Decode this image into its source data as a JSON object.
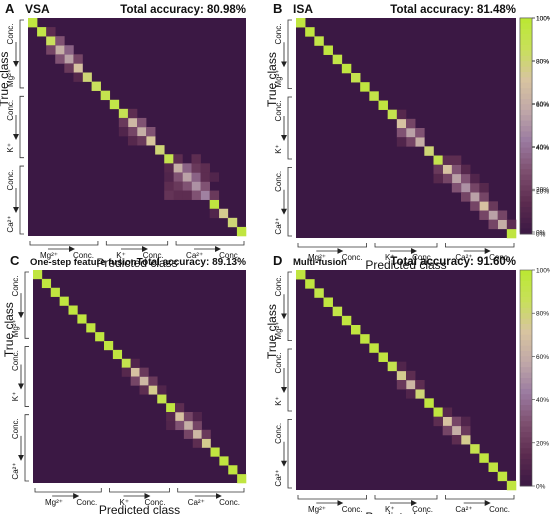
{
  "figure": {
    "colorbar_ticks": [
      "100%",
      "80%",
      "60%",
      "40%",
      "20%",
      "0%"
    ],
    "colormap": [
      "#3b1844",
      "#5b2b4f",
      "#7d4e6e",
      "#9a7aa0",
      "#c0a8a8",
      "#d8c4a0",
      "#c8e05a",
      "#bbe832"
    ]
  },
  "chart_data": [
    {
      "type": "heatmap",
      "panel_letter": "A",
      "title": "VSA",
      "accuracy_label": "Total accuracy: 80.98%",
      "total_accuracy": 80.98,
      "xlabel": "Predicted class",
      "ylabel": "True class",
      "n_classes": 24,
      "value_range": [
        0,
        100
      ],
      "diagonal_values": [
        95,
        92,
        85,
        60,
        55,
        70,
        80,
        85,
        90,
        92,
        88,
        65,
        60,
        72,
        80,
        90,
        60,
        55,
        50,
        45,
        95,
        75,
        80,
        95
      ],
      "off_diagonal": [
        {
          "row": 2,
          "col": 3,
          "value": 30
        },
        {
          "row": 3,
          "col": 2,
          "value": 25
        },
        {
          "row": 3,
          "col": 4,
          "value": 35
        },
        {
          "row": 4,
          "col": 3,
          "value": 30
        },
        {
          "row": 4,
          "col": 5,
          "value": 25
        },
        {
          "row": 5,
          "col": 4,
          "value": 20
        },
        {
          "row": 1,
          "col": 2,
          "value": 15
        },
        {
          "row": 6,
          "col": 5,
          "value": 12
        },
        {
          "row": 11,
          "col": 12,
          "value": 30
        },
        {
          "row": 12,
          "col": 11,
          "value": 25
        },
        {
          "row": 12,
          "col": 13,
          "value": 30
        },
        {
          "row": 13,
          "col": 12,
          "value": 20
        },
        {
          "row": 10,
          "col": 11,
          "value": 15
        },
        {
          "row": 11,
          "col": 10,
          "value": 20
        },
        {
          "row": 12,
          "col": 10,
          "value": 10
        },
        {
          "row": 13,
          "col": 11,
          "value": 12
        },
        {
          "row": 16,
          "col": 17,
          "value": 35
        },
        {
          "row": 17,
          "col": 16,
          "value": 30
        },
        {
          "row": 17,
          "col": 18,
          "value": 35
        },
        {
          "row": 18,
          "col": 17,
          "value": 30
        },
        {
          "row": 18,
          "col": 19,
          "value": 30
        },
        {
          "row": 19,
          "col": 18,
          "value": 30
        },
        {
          "row": 16,
          "col": 18,
          "value": 20
        },
        {
          "row": 18,
          "col": 16,
          "value": 20
        },
        {
          "row": 19,
          "col": 17,
          "value": 15
        },
        {
          "row": 17,
          "col": 19,
          "value": 15
        },
        {
          "row": 16,
          "col": 19,
          "value": 15
        },
        {
          "row": 19,
          "col": 16,
          "value": 15
        },
        {
          "row": 15,
          "col": 16,
          "value": 15
        },
        {
          "row": 16,
          "col": 15,
          "value": 12
        },
        {
          "row": 18,
          "col": 15,
          "value": 15
        },
        {
          "row": 19,
          "col": 15,
          "value": 18
        },
        {
          "row": 15,
          "col": 18,
          "value": 15
        },
        {
          "row": 17,
          "col": 15,
          "value": 10
        },
        {
          "row": 19,
          "col": 20,
          "value": 20
        },
        {
          "row": 21,
          "col": 20,
          "value": 10
        },
        {
          "row": 17,
          "col": 20,
          "value": 10
        }
      ],
      "x_group_labels": [
        {
          "ion": "Mg²⁺",
          "conc": "Conc."
        },
        {
          "ion": "K⁺",
          "conc": "Conc."
        },
        {
          "ion": "Ca²⁺",
          "conc": "Conc."
        }
      ],
      "y_group_labels": [
        {
          "ion": "Mg²⁺",
          "conc": "Conc."
        },
        {
          "ion": "K⁺",
          "conc": "Conc."
        },
        {
          "ion": "Ca²⁺",
          "conc": "Conc."
        }
      ]
    },
    {
      "type": "heatmap",
      "panel_letter": "B",
      "title": "ISA",
      "accuracy_label": "Total accuracy: 81.48%",
      "total_accuracy": 81.48,
      "xlabel": "Predicted class",
      "ylabel": "True class",
      "n_classes": 24,
      "value_range": [
        0,
        100
      ],
      "diagonal_values": [
        95,
        95,
        92,
        95,
        92,
        95,
        90,
        95,
        92,
        95,
        90,
        70,
        55,
        60,
        80,
        90,
        70,
        55,
        50,
        55,
        70,
        55,
        60,
        95
      ],
      "off_diagonal": [
        {
          "row": 11,
          "col": 12,
          "value": 25
        },
        {
          "row": 12,
          "col": 11,
          "value": 30
        },
        {
          "row": 12,
          "col": 13,
          "value": 30
        },
        {
          "row": 13,
          "col": 12,
          "value": 25
        },
        {
          "row": 10,
          "col": 11,
          "value": 12
        },
        {
          "row": 13,
          "col": 11,
          "value": 10
        },
        {
          "row": 16,
          "col": 17,
          "value": 30
        },
        {
          "row": 17,
          "col": 16,
          "value": 25
        },
        {
          "row": 17,
          "col": 18,
          "value": 30
        },
        {
          "row": 18,
          "col": 17,
          "value": 30
        },
        {
          "row": 18,
          "col": 19,
          "value": 25
        },
        {
          "row": 19,
          "col": 18,
          "value": 25
        },
        {
          "row": 15,
          "col": 16,
          "value": 15
        },
        {
          "row": 16,
          "col": 15,
          "value": 20
        },
        {
          "row": 15,
          "col": 17,
          "value": 15
        },
        {
          "row": 17,
          "col": 15,
          "value": 12
        },
        {
          "row": 19,
          "col": 20,
          "value": 25
        },
        {
          "row": 20,
          "col": 19,
          "value": 25
        },
        {
          "row": 20,
          "col": 21,
          "value": 20
        },
        {
          "row": 21,
          "col": 20,
          "value": 25
        },
        {
          "row": 21,
          "col": 22,
          "value": 25
        },
        {
          "row": 22,
          "col": 21,
          "value": 25
        },
        {
          "row": 22,
          "col": 23,
          "value": 15
        },
        {
          "row": 18,
          "col": 20,
          "value": 12
        },
        {
          "row": 16,
          "col": 18,
          "value": 12
        },
        {
          "row": 17,
          "col": 19,
          "value": 10
        }
      ],
      "x_group_labels": [
        {
          "ion": "Mg²⁺",
          "conc": "Conc."
        },
        {
          "ion": "K⁺",
          "conc": "Conc."
        },
        {
          "ion": "Ca²⁺",
          "conc": "Conc."
        }
      ],
      "y_group_labels": [
        {
          "ion": "Mg²⁺",
          "conc": "Conc."
        },
        {
          "ion": "K⁺",
          "conc": "Conc."
        },
        {
          "ion": "Ca²⁺",
          "conc": "Conc."
        }
      ]
    },
    {
      "type": "heatmap",
      "panel_letter": "C",
      "title": "One-step feature fusion",
      "accuracy_label": "Total accuracy: 89.13%",
      "total_accuracy": 89.13,
      "xlabel": "Predicted class",
      "ylabel": "True class",
      "n_classes": 24,
      "value_range": [
        0,
        100
      ],
      "diagonal_values": [
        95,
        95,
        95,
        95,
        95,
        95,
        95,
        95,
        95,
        95,
        90,
        70,
        65,
        75,
        90,
        95,
        70,
        60,
        65,
        75,
        95,
        95,
        95,
        95
      ],
      "off_diagonal": [
        {
          "row": 11,
          "col": 12,
          "value": 20
        },
        {
          "row": 12,
          "col": 11,
          "value": 25
        },
        {
          "row": 12,
          "col": 13,
          "value": 20
        },
        {
          "row": 13,
          "col": 12,
          "value": 15
        },
        {
          "row": 10,
          "col": 11,
          "value": 10
        },
        {
          "row": 11,
          "col": 10,
          "value": 12
        },
        {
          "row": 13,
          "col": 14,
          "value": 10
        },
        {
          "row": 16,
          "col": 17,
          "value": 25
        },
        {
          "row": 17,
          "col": 16,
          "value": 30
        },
        {
          "row": 17,
          "col": 18,
          "value": 25
        },
        {
          "row": 18,
          "col": 17,
          "value": 25
        },
        {
          "row": 18,
          "col": 19,
          "value": 20
        },
        {
          "row": 19,
          "col": 18,
          "value": 15
        },
        {
          "row": 15,
          "col": 16,
          "value": 15
        },
        {
          "row": 16,
          "col": 15,
          "value": 12
        },
        {
          "row": 17,
          "col": 15,
          "value": 10
        },
        {
          "row": 16,
          "col": 18,
          "value": 10
        }
      ],
      "x_group_labels": [
        {
          "ion": "Mg²⁺",
          "conc": "Conc."
        },
        {
          "ion": "K⁺",
          "conc": "Conc."
        },
        {
          "ion": "Ca²⁺",
          "conc": "Conc."
        }
      ],
      "y_group_labels": [
        {
          "ion": "Mg²⁺",
          "conc": "Conc."
        },
        {
          "ion": "K⁺",
          "conc": "Conc."
        },
        {
          "ion": "Ca²⁺",
          "conc": "Conc."
        }
      ]
    },
    {
      "type": "heatmap",
      "panel_letter": "D",
      "title": "Multi-fusion",
      "accuracy_label": "Total accuracy: 91.60%",
      "total_accuracy": 91.6,
      "xlabel": "Predicted class",
      "ylabel": "True class",
      "n_classes": 24,
      "value_range": [
        0,
        100
      ],
      "diagonal_values": [
        95,
        95,
        92,
        95,
        92,
        95,
        95,
        95,
        95,
        95,
        90,
        75,
        65,
        80,
        95,
        95,
        70,
        60,
        75,
        90,
        95,
        95,
        95,
        95
      ],
      "off_diagonal": [
        {
          "row": 11,
          "col": 12,
          "value": 15
        },
        {
          "row": 12,
          "col": 11,
          "value": 20
        },
        {
          "row": 12,
          "col": 13,
          "value": 15
        },
        {
          "row": 10,
          "col": 11,
          "value": 10
        },
        {
          "row": 13,
          "col": 12,
          "value": 10
        },
        {
          "row": 16,
          "col": 17,
          "value": 25
        },
        {
          "row": 17,
          "col": 16,
          "value": 25
        },
        {
          "row": 17,
          "col": 18,
          "value": 20
        },
        {
          "row": 18,
          "col": 17,
          "value": 15
        },
        {
          "row": 15,
          "col": 16,
          "value": 12
        },
        {
          "row": 16,
          "col": 15,
          "value": 15
        },
        {
          "row": 16,
          "col": 18,
          "value": 10
        }
      ],
      "x_group_labels": [
        {
          "ion": "Mg²⁺",
          "conc": "Conc."
        },
        {
          "ion": "K⁺",
          "conc": "Conc."
        },
        {
          "ion": "Ca²⁺",
          "conc": "Conc."
        }
      ],
      "y_group_labels": [
        {
          "ion": "Mg²⁺",
          "conc": "Conc."
        },
        {
          "ion": "K⁺",
          "conc": "Conc."
        },
        {
          "ion": "Ca²⁺",
          "conc": "Conc."
        }
      ]
    }
  ]
}
